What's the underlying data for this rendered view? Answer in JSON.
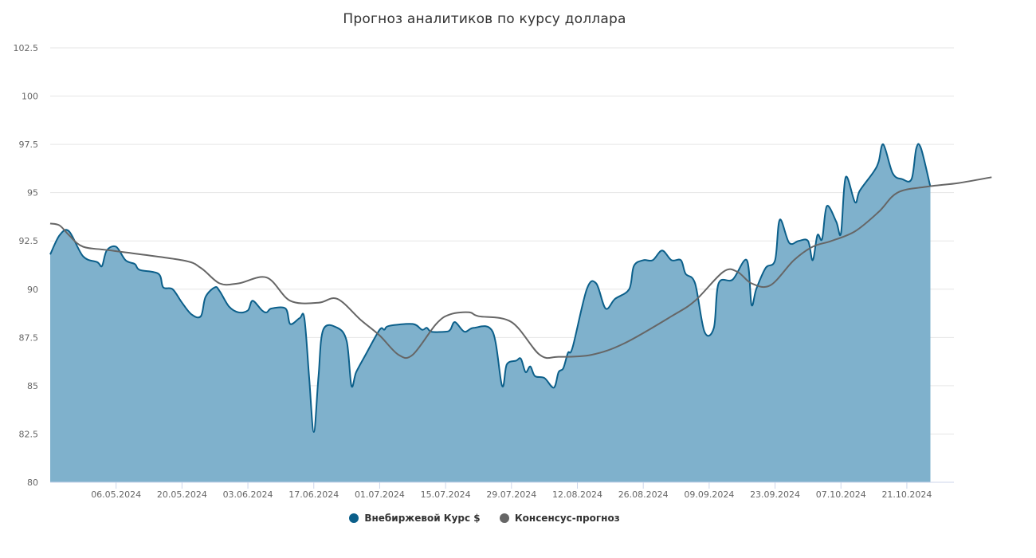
{
  "chart_data": {
    "type": "area",
    "title": "Прогноз аналитиков по курсу доллара",
    "ylim": [
      80,
      102.5
    ],
    "yticks": [
      "80",
      "82.5",
      "85",
      "87.5",
      "90",
      "92.5",
      "95",
      "97.5",
      "100",
      "102.5"
    ],
    "xlim": [
      "2024-04-22",
      "2024-10-31"
    ],
    "xticks": [
      {
        "date": "2024-05-06",
        "label": "06.05.2024"
      },
      {
        "date": "2024-05-20",
        "label": "20.05.2024"
      },
      {
        "date": "2024-06-03",
        "label": "03.06.2024"
      },
      {
        "date": "2024-06-17",
        "label": "17.06.2024"
      },
      {
        "date": "2024-07-01",
        "label": "01.07.2024"
      },
      {
        "date": "2024-07-15",
        "label": "15.07.2024"
      },
      {
        "date": "2024-07-29",
        "label": "29.07.2024"
      },
      {
        "date": "2024-08-12",
        "label": "12.08.2024"
      },
      {
        "date": "2024-08-26",
        "label": "26.08.2024"
      },
      {
        "date": "2024-09-09",
        "label": "09.09.2024"
      },
      {
        "date": "2024-09-23",
        "label": "23.09.2024"
      },
      {
        "date": "2024-10-07",
        "label": "07.10.2024"
      },
      {
        "date": "2024-10-21",
        "label": "21.10.2024"
      }
    ],
    "grid": true,
    "legend_position": "bottom",
    "series": [
      {
        "name": "Внебиржевой Курс $",
        "type": "area",
        "color": "#0b5f8a",
        "fill": "#7fb1cc",
        "points": [
          [
            "2024-04-22",
            91.8
          ],
          [
            "2024-04-24",
            92.8
          ],
          [
            "2024-04-26",
            93.0
          ],
          [
            "2024-04-29",
            91.7
          ],
          [
            "2024-05-02",
            91.4
          ],
          [
            "2024-05-03",
            91.2
          ],
          [
            "2024-05-04",
            92.0
          ],
          [
            "2024-05-06",
            92.2
          ],
          [
            "2024-05-08",
            91.5
          ],
          [
            "2024-05-10",
            91.3
          ],
          [
            "2024-05-11",
            91.0
          ],
          [
            "2024-05-15",
            90.8
          ],
          [
            "2024-05-16",
            90.1
          ],
          [
            "2024-05-18",
            90.0
          ],
          [
            "2024-05-20",
            89.3
          ],
          [
            "2024-05-22",
            88.7
          ],
          [
            "2024-05-24",
            88.6
          ],
          [
            "2024-05-25",
            89.6
          ],
          [
            "2024-05-27",
            90.1
          ],
          [
            "2024-05-28",
            89.9
          ],
          [
            "2024-05-30",
            89.1
          ],
          [
            "2024-06-01",
            88.8
          ],
          [
            "2024-06-03",
            88.9
          ],
          [
            "2024-06-04",
            89.4
          ],
          [
            "2024-06-06",
            88.9
          ],
          [
            "2024-06-07",
            88.8
          ],
          [
            "2024-06-08",
            89.0
          ],
          [
            "2024-06-11",
            89.0
          ],
          [
            "2024-06-12",
            88.2
          ],
          [
            "2024-06-14",
            88.5
          ],
          [
            "2024-06-15",
            88.5
          ],
          [
            "2024-06-16",
            85.5
          ],
          [
            "2024-06-17",
            82.6
          ],
          [
            "2024-06-18",
            85.5
          ],
          [
            "2024-06-19",
            87.9
          ],
          [
            "2024-06-22",
            88.0
          ],
          [
            "2024-06-24",
            87.3
          ],
          [
            "2024-06-25",
            85.0
          ],
          [
            "2024-06-26",
            85.7
          ],
          [
            "2024-06-28",
            86.6
          ],
          [
            "2024-07-01",
            87.9
          ],
          [
            "2024-07-02",
            87.9
          ],
          [
            "2024-07-03",
            88.1
          ],
          [
            "2024-07-08",
            88.2
          ],
          [
            "2024-07-10",
            87.9
          ],
          [
            "2024-07-11",
            88.0
          ],
          [
            "2024-07-12",
            87.8
          ],
          [
            "2024-07-15",
            87.8
          ],
          [
            "2024-07-16",
            87.9
          ],
          [
            "2024-07-17",
            88.3
          ],
          [
            "2024-07-19",
            87.8
          ],
          [
            "2024-07-21",
            88.0
          ],
          [
            "2024-07-25",
            87.8
          ],
          [
            "2024-07-27",
            85.0
          ],
          [
            "2024-07-28",
            86.1
          ],
          [
            "2024-07-30",
            86.3
          ],
          [
            "2024-07-31",
            86.4
          ],
          [
            "2024-08-01",
            85.7
          ],
          [
            "2024-08-02",
            86.0
          ],
          [
            "2024-08-03",
            85.5
          ],
          [
            "2024-08-05",
            85.4
          ],
          [
            "2024-08-07",
            84.9
          ],
          [
            "2024-08-08",
            85.7
          ],
          [
            "2024-08-09",
            85.9
          ],
          [
            "2024-08-10",
            86.7
          ],
          [
            "2024-08-11",
            87.0
          ],
          [
            "2024-08-14",
            90.0
          ],
          [
            "2024-08-16",
            90.3
          ],
          [
            "2024-08-18",
            89.0
          ],
          [
            "2024-08-20",
            89.5
          ],
          [
            "2024-08-23",
            90.0
          ],
          [
            "2024-08-24",
            91.2
          ],
          [
            "2024-08-26",
            91.5
          ],
          [
            "2024-08-28",
            91.5
          ],
          [
            "2024-08-30",
            92.0
          ],
          [
            "2024-09-01",
            91.5
          ],
          [
            "2024-09-03",
            91.5
          ],
          [
            "2024-09-04",
            90.8
          ],
          [
            "2024-09-06",
            90.3
          ],
          [
            "2024-09-08",
            87.8
          ],
          [
            "2024-09-10",
            88.0
          ],
          [
            "2024-09-11",
            90.3
          ],
          [
            "2024-09-14",
            90.5
          ],
          [
            "2024-09-17",
            91.5
          ],
          [
            "2024-09-18",
            89.2
          ],
          [
            "2024-09-19",
            90.0
          ],
          [
            "2024-09-21",
            91.1
          ],
          [
            "2024-09-23",
            91.5
          ],
          [
            "2024-09-24",
            93.6
          ],
          [
            "2024-09-26",
            92.4
          ],
          [
            "2024-09-28",
            92.5
          ],
          [
            "2024-09-30",
            92.5
          ],
          [
            "2024-10-01",
            91.5
          ],
          [
            "2024-10-02",
            92.8
          ],
          [
            "2024-10-03",
            92.6
          ],
          [
            "2024-10-04",
            94.3
          ],
          [
            "2024-10-06",
            93.5
          ],
          [
            "2024-10-07",
            92.9
          ],
          [
            "2024-10-08",
            95.8
          ],
          [
            "2024-10-10",
            94.5
          ],
          [
            "2024-10-11",
            95.1
          ],
          [
            "2024-10-14",
            96.1
          ],
          [
            "2024-10-15",
            96.6
          ],
          [
            "2024-10-16",
            97.5
          ],
          [
            "2024-10-18",
            96.0
          ],
          [
            "2024-10-20",
            95.7
          ],
          [
            "2024-10-22",
            95.7
          ],
          [
            "2024-10-23",
            97.3
          ],
          [
            "2024-10-24",
            97.3
          ],
          [
            "2024-10-26",
            95.3
          ]
        ]
      },
      {
        "name": "Консенсус-прогноз",
        "type": "line",
        "color": "#666666",
        "points": [
          [
            "2024-04-22",
            93.4
          ],
          [
            "2024-04-24",
            93.3
          ],
          [
            "2024-04-26",
            92.8
          ],
          [
            "2024-04-29",
            92.2
          ],
          [
            "2024-05-05",
            92.0
          ],
          [
            "2024-05-20",
            91.5
          ],
          [
            "2024-05-24",
            91.1
          ],
          [
            "2024-05-28",
            90.3
          ],
          [
            "2024-06-01",
            90.3
          ],
          [
            "2024-06-07",
            90.6
          ],
          [
            "2024-06-12",
            89.4
          ],
          [
            "2024-06-18",
            89.3
          ],
          [
            "2024-06-22",
            89.5
          ],
          [
            "2024-06-27",
            88.4
          ],
          [
            "2024-07-01",
            87.6
          ],
          [
            "2024-07-05",
            86.6
          ],
          [
            "2024-07-08",
            86.6
          ],
          [
            "2024-07-13",
            88.2
          ],
          [
            "2024-07-16",
            88.7
          ],
          [
            "2024-07-20",
            88.8
          ],
          [
            "2024-07-22",
            88.6
          ],
          [
            "2024-07-29",
            88.3
          ],
          [
            "2024-08-04",
            86.6
          ],
          [
            "2024-08-08",
            86.5
          ],
          [
            "2024-08-15",
            86.6
          ],
          [
            "2024-08-22",
            87.2
          ],
          [
            "2024-09-01",
            88.6
          ],
          [
            "2024-09-06",
            89.4
          ],
          [
            "2024-09-12",
            90.9
          ],
          [
            "2024-09-15",
            90.9
          ],
          [
            "2024-09-18",
            90.3
          ],
          [
            "2024-09-22",
            90.2
          ],
          [
            "2024-09-27",
            91.5
          ],
          [
            "2024-10-01",
            92.2
          ],
          [
            "2024-10-05",
            92.5
          ],
          [
            "2024-10-10",
            93.0
          ],
          [
            "2024-10-15",
            94.0
          ],
          [
            "2024-10-19",
            95.0
          ],
          [
            "2024-10-25",
            95.3
          ],
          [
            "2024-11-01",
            95.5
          ],
          [
            "2024-11-08",
            95.8
          ]
        ]
      }
    ]
  }
}
